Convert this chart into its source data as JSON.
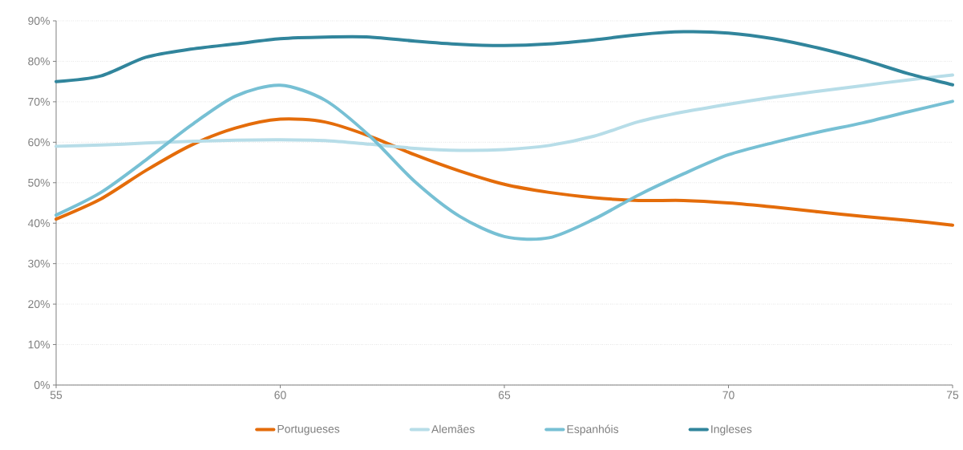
{
  "chart_data": {
    "type": "line",
    "x": [
      55,
      56,
      57,
      58,
      59,
      60,
      61,
      62,
      63,
      64,
      65,
      66,
      67,
      68,
      69,
      70,
      71,
      72,
      73,
      74,
      75
    ],
    "series": [
      {
        "name": "Portugueses",
        "color": "#e46c0a",
        "values": [
          41,
          46,
          53,
          59.2,
          63.5,
          65.7,
          65,
          61.5,
          56.9,
          52.9,
          49.6,
          47.6,
          46.3,
          45.6,
          45.6,
          45,
          44,
          42.8,
          41.7,
          40.7,
          39.5
        ]
      },
      {
        "name": "Alemães",
        "color": "#b7dde8",
        "values": [
          59,
          59.3,
          59.8,
          60.2,
          60.5,
          60.6,
          60.4,
          59.5,
          58.5,
          58,
          58.2,
          59.2,
          61.5,
          65.1,
          67.5,
          69.4,
          71.1,
          72.6,
          74,
          75.4,
          76.6
        ]
      },
      {
        "name": "Espanhóis",
        "color": "#77c0d4",
        "values": [
          42,
          47.6,
          55.6,
          64.1,
          71.4,
          74.1,
          70.4,
          61.5,
          50.3,
          41.7,
          36.7,
          36.4,
          41,
          47,
          52.2,
          56.9,
          59.9,
          62.5,
          64.8,
          67.5,
          70.1
        ]
      },
      {
        "name": "Ingleses",
        "color": "#31859c",
        "values": [
          75,
          76.4,
          81,
          83,
          84.3,
          85.6,
          86,
          86,
          85,
          84.2,
          83.9,
          84.3,
          85.3,
          86.6,
          87.3,
          87,
          85.6,
          83.3,
          80.4,
          77,
          74.2
        ]
      }
    ],
    "xlim": [
      55,
      75
    ],
    "xticks": [
      55,
      60,
      65,
      70,
      75
    ],
    "ylim": [
      0,
      90
    ],
    "yticks": [
      {
        "value": 0,
        "label": "0%"
      },
      {
        "value": 10,
        "label": "10%"
      },
      {
        "value": 20,
        "label": "20%"
      },
      {
        "value": 30,
        "label": "30%"
      },
      {
        "value": 40,
        "label": "40%"
      },
      {
        "value": 50,
        "label": "50%"
      },
      {
        "value": 60,
        "label": "60%"
      },
      {
        "value": 70,
        "label": "70%"
      },
      {
        "value": 80,
        "label": "80%"
      },
      {
        "value": 90,
        "label": "90%"
      }
    ],
    "grid": "y",
    "legend": "bottom",
    "line_style": "solid",
    "marker": "none"
  }
}
